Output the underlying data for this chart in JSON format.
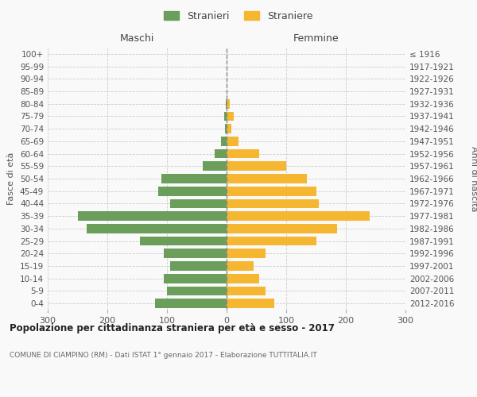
{
  "age_groups": [
    "0-4",
    "5-9",
    "10-14",
    "15-19",
    "20-24",
    "25-29",
    "30-34",
    "35-39",
    "40-44",
    "45-49",
    "50-54",
    "55-59",
    "60-64",
    "65-69",
    "70-74",
    "75-79",
    "80-84",
    "85-89",
    "90-94",
    "95-99",
    "100+"
  ],
  "birth_years": [
    "2012-2016",
    "2007-2011",
    "2002-2006",
    "1997-2001",
    "1992-1996",
    "1987-1991",
    "1982-1986",
    "1977-1981",
    "1972-1976",
    "1967-1971",
    "1962-1966",
    "1957-1961",
    "1952-1956",
    "1947-1951",
    "1942-1946",
    "1937-1941",
    "1932-1936",
    "1927-1931",
    "1922-1926",
    "1917-1921",
    "≤ 1916"
  ],
  "maschi": [
    120,
    100,
    105,
    95,
    105,
    145,
    235,
    250,
    95,
    115,
    110,
    40,
    20,
    10,
    3,
    4,
    2,
    0,
    0,
    0,
    0
  ],
  "femmine": [
    80,
    65,
    55,
    45,
    65,
    150,
    185,
    240,
    155,
    150,
    135,
    100,
    55,
    20,
    8,
    12,
    5,
    0,
    0,
    0,
    0
  ],
  "maschi_color": "#6a9e5a",
  "femmine_color": "#f5b731",
  "center_line_color": "#888888",
  "grid_color": "#cccccc",
  "background_color": "#f9f9f9",
  "title": "Popolazione per cittadinanza straniera per età e sesso - 2017",
  "subtitle": "COMUNE DI CIAMPINO (RM) - Dati ISTAT 1° gennaio 2017 - Elaborazione TUTTITALIA.IT",
  "ylabel_left": "Fasce di età",
  "ylabel_right": "Anni di nascita",
  "xlabel_maschi": "Maschi",
  "xlabel_femmine": "Femmine",
  "legend_maschi": "Stranieri",
  "legend_femmine": "Straniere",
  "xlim": 300
}
